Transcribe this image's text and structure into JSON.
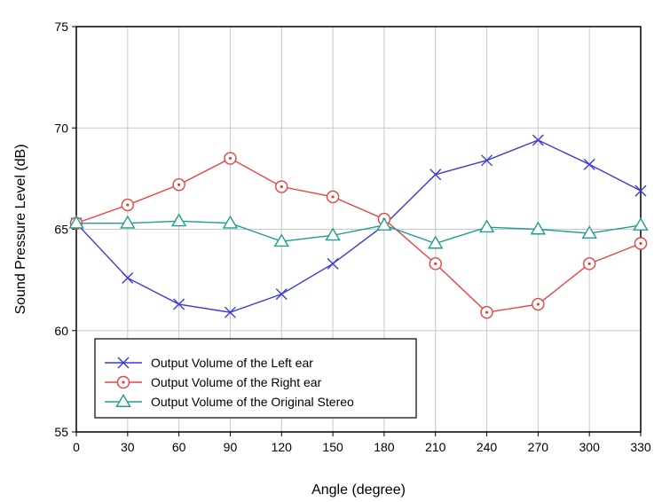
{
  "chart_data": {
    "type": "line",
    "xlabel": "Angle (degree)",
    "ylabel": "Sound Pressure Level (dB)",
    "xlim": [
      0,
      330
    ],
    "ylim": [
      55,
      75
    ],
    "x": [
      0,
      30,
      60,
      90,
      120,
      150,
      180,
      210,
      240,
      270,
      300,
      330
    ],
    "x_ticks": [
      "0",
      "30",
      "60",
      "90",
      "120",
      "150",
      "180",
      "210",
      "240",
      "270",
      "300",
      "330"
    ],
    "y_ticks": [
      "55",
      "60",
      "65",
      "70",
      "75"
    ],
    "y_tick_values": [
      55,
      60,
      65,
      70,
      75
    ],
    "grid": true,
    "legend_position": "bottom-left",
    "series": [
      {
        "name": "Output Volume of the Left ear",
        "marker": "x",
        "color": "#3b3bd6",
        "values": [
          65.3,
          62.6,
          61.3,
          60.9,
          61.8,
          63.3,
          65.2,
          67.7,
          68.4,
          69.4,
          68.2,
          66.9
        ]
      },
      {
        "name": "Output Volume of the Right ear",
        "marker": "circle-dot",
        "color": "#e8423f",
        "values": [
          65.3,
          66.2,
          67.2,
          68.5,
          67.1,
          66.6,
          65.5,
          63.3,
          60.9,
          61.3,
          63.3,
          64.3
        ]
      },
      {
        "name": "Output Volume of the Original Stereo",
        "marker": "triangle",
        "color": "#1f9e8f",
        "values": [
          65.3,
          65.3,
          65.4,
          65.3,
          64.4,
          64.7,
          65.2,
          64.3,
          65.1,
          65.0,
          64.8,
          65.2
        ]
      }
    ]
  }
}
